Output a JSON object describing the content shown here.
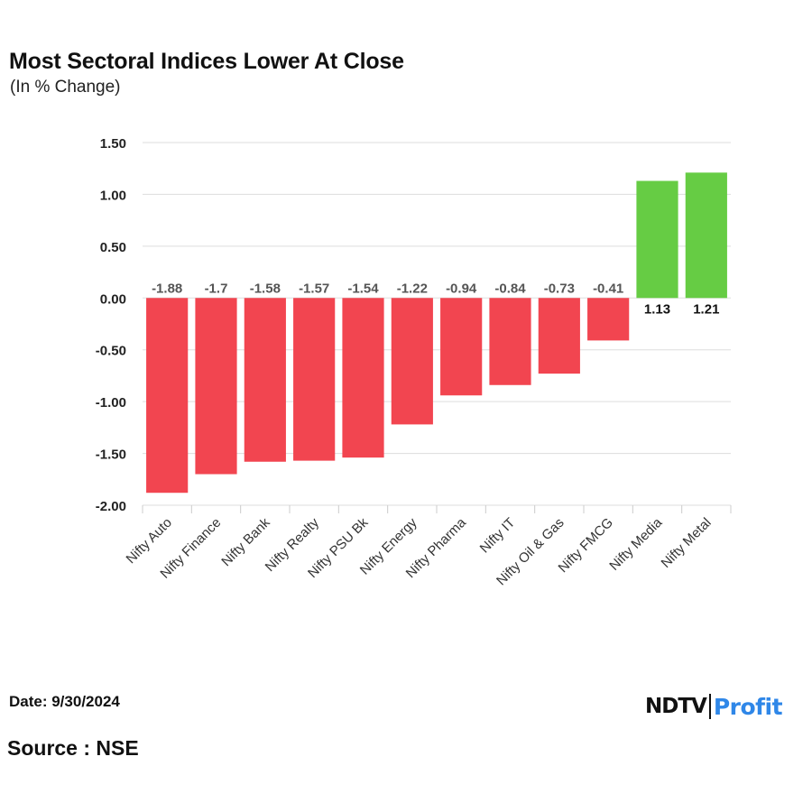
{
  "header": {
    "title": "Most Sectoral Indices Lower At Close",
    "subtitle": "(In % Change)"
  },
  "footer": {
    "date": "Date: 9/30/2024",
    "source": "Source : NSE",
    "logo_primary": "NDTV",
    "logo_secondary": "Profit"
  },
  "colors": {
    "negative": "#f24550",
    "positive": "#66cc44",
    "grid": "#dddddd",
    "brand": "#2f87e8"
  },
  "chart_data": {
    "type": "bar",
    "title": "Most Sectoral Indices Lower At Close",
    "subtitle": "(In % Change)",
    "xlabel": "",
    "ylabel": "",
    "ylim": [
      -2.0,
      1.5
    ],
    "yticks": [
      1.5,
      1.0,
      0.5,
      0.0,
      -0.5,
      -1.0,
      -1.5,
      -2.0
    ],
    "ytick_labels": [
      "1.50",
      "1.00",
      "0.50",
      "0.00",
      "-0.50",
      "-1.00",
      "-1.50",
      "-2.00"
    ],
    "grid": true,
    "categories": [
      "Nifty Auto",
      "Nifty Finance",
      "Nifty Bank",
      "Nifty Realty",
      "Nifty PSU Bk",
      "Nifty Energy",
      "Nifty Pharma",
      "Nifty IT",
      "Nifty Oil & Gas",
      "Nifty FMCG",
      "Nifty Media",
      "Nifty Metal"
    ],
    "values": [
      -1.88,
      -1.7,
      -1.58,
      -1.57,
      -1.54,
      -1.22,
      -0.94,
      -0.84,
      -0.73,
      -0.41,
      1.13,
      1.21
    ],
    "value_labels": [
      "-1.88",
      "-1.7",
      "-1.58",
      "-1.57",
      "-1.54",
      "-1.22",
      "-0.94",
      "-0.84",
      "-0.73",
      "-0.41",
      "1.13",
      "1.21"
    ]
  }
}
